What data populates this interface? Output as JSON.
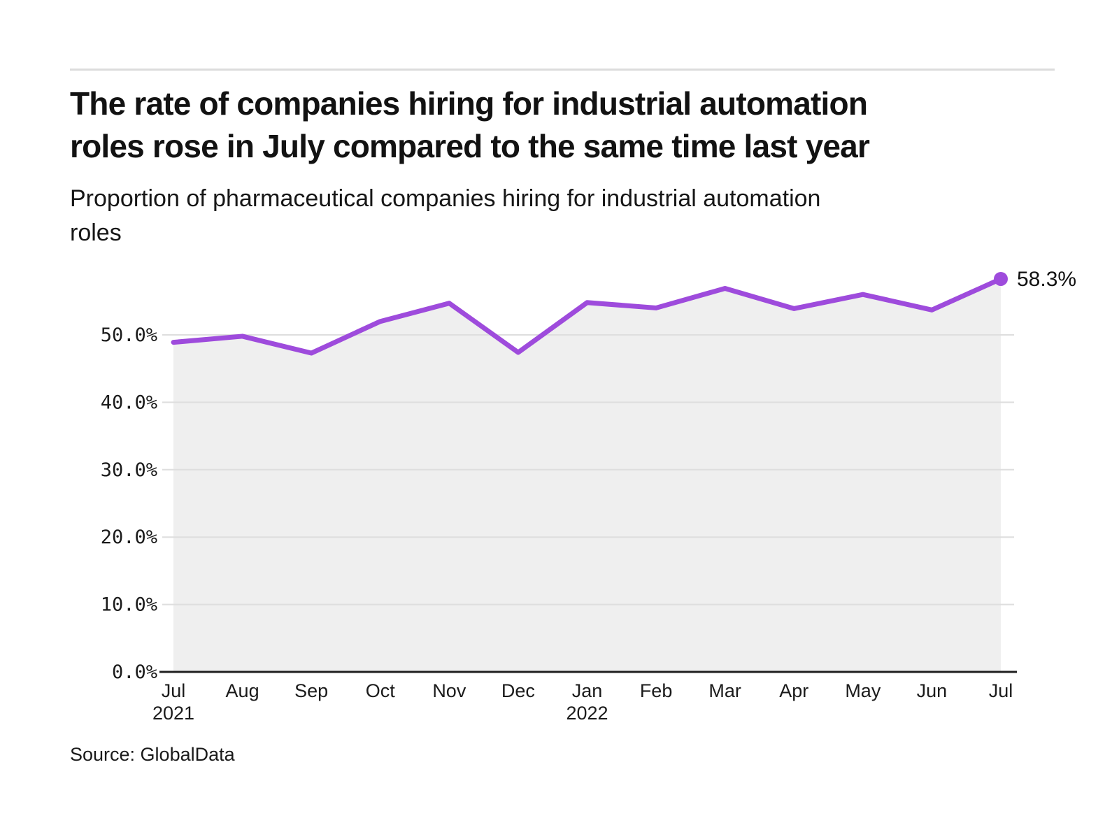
{
  "header": {
    "title_lines": [
      "The rate of companies hiring for industrial automation",
      "roles rose in July compared to the same time last year"
    ],
    "subtitle_lines": [
      "Proportion of pharmaceutical companies hiring for industrial automation",
      "roles"
    ]
  },
  "footer": {
    "source": "Source: GlobalData"
  },
  "colors": {
    "line": "#9e4bdc",
    "area_fill": "#efefef",
    "grid": "#dedede",
    "axis": "#1f1f1f",
    "text": "#1b1b1b"
  },
  "chart_data": {
    "type": "area",
    "title": "Proportion of pharmaceutical companies hiring for industrial automation roles",
    "categories": [
      "Jul",
      "Aug",
      "Sep",
      "Oct",
      "Nov",
      "Dec",
      "Jan",
      "Feb",
      "Mar",
      "Apr",
      "May",
      "Jun",
      "Jul"
    ],
    "year_labels": [
      {
        "index": 0,
        "label": "2021"
      },
      {
        "index": 6,
        "label": "2022"
      }
    ],
    "values": [
      48.9,
      49.8,
      47.3,
      52.0,
      54.7,
      47.4,
      54.8,
      54.0,
      56.9,
      53.9,
      56.0,
      53.7,
      58.3
    ],
    "end_label": "58.3%",
    "y_ticks": [
      "0.0%",
      "10.0%",
      "20.0%",
      "30.0%",
      "40.0%",
      "50.0%"
    ],
    "y_tick_values": [
      0,
      10,
      20,
      30,
      40,
      50
    ],
    "ylim": [
      0,
      60
    ],
    "xlabel": "",
    "ylabel": "",
    "grid": true,
    "legend": "none",
    "line_width": 7,
    "marker_on_last_point": true
  }
}
